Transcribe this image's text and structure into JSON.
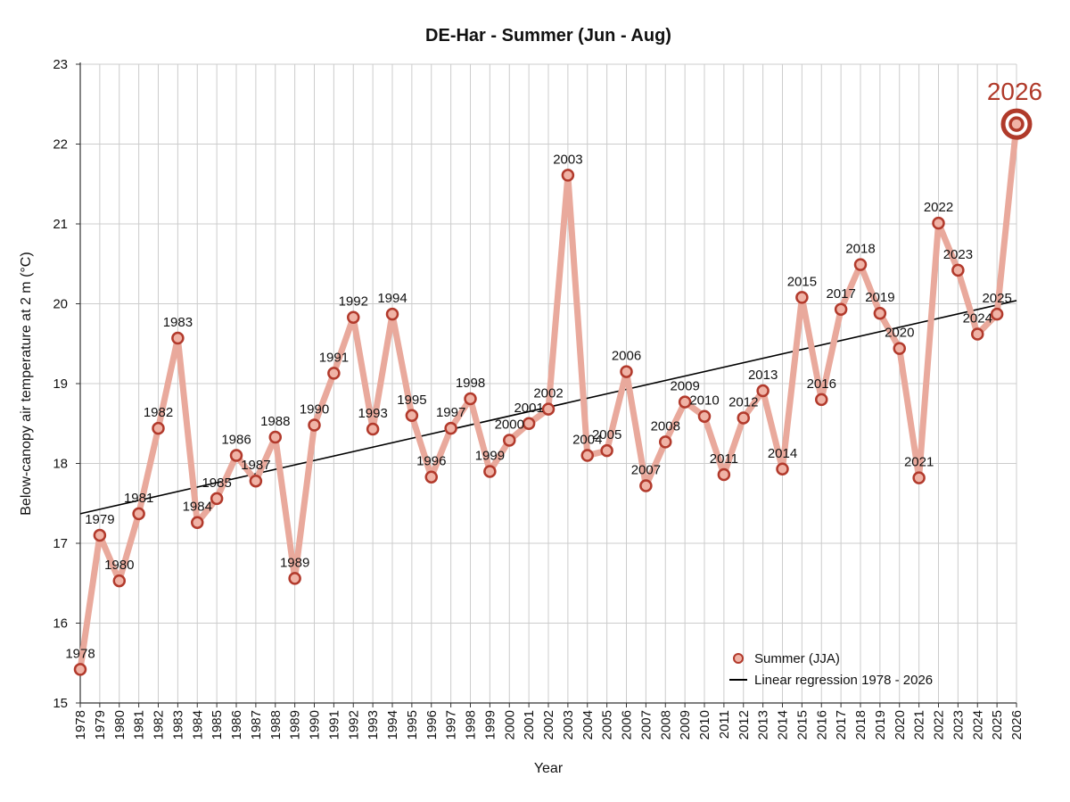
{
  "chart_data": {
    "type": "line",
    "title": "DE-Har - Summer (Jun - Aug)",
    "xlabel": "Year",
    "ylabel": "Below-canopy air temperature at 2 m (°C)",
    "ylim": [
      15,
      23
    ],
    "yticks": [
      15,
      16,
      17,
      18,
      19,
      20,
      21,
      22,
      23
    ],
    "grid": true,
    "legend_position": "bottom-right",
    "colors": {
      "series_line": "#e9a99c",
      "marker_edge": "#b23a2c",
      "marker_fill": "#f0b3a6",
      "regression": "#000000",
      "highlight": "#b03a2a",
      "grid": "#cccccc"
    },
    "x": [
      1978,
      1979,
      1980,
      1981,
      1982,
      1983,
      1984,
      1985,
      1986,
      1987,
      1988,
      1989,
      1990,
      1991,
      1992,
      1993,
      1994,
      1995,
      1996,
      1997,
      1998,
      1999,
      2000,
      2001,
      2002,
      2003,
      2004,
      2005,
      2006,
      2007,
      2008,
      2009,
      2010,
      2011,
      2012,
      2013,
      2014,
      2015,
      2016,
      2017,
      2018,
      2019,
      2020,
      2021,
      2022,
      2023,
      2024,
      2025,
      2026
    ],
    "x_tick_labels": [
      "1978",
      "1979",
      "1980",
      "1981",
      "1982",
      "1983",
      "1984",
      "1985",
      "1986",
      "1987",
      "1988",
      "1989",
      "1990",
      "1991",
      "1992",
      "1993",
      "1994",
      "1995",
      "1996",
      "1997",
      "1998",
      "1999",
      "2000",
      "2001",
      "2002",
      "2003",
      "2004",
      "2005",
      "2006",
      "2007",
      "2008",
      "2009",
      "2010",
      "2011",
      "2012",
      "2013",
      "2014",
      "2015",
      "2016",
      "2017",
      "2018",
      "2019",
      "2020",
      "2021",
      "2022",
      "2023",
      "2024",
      "2025",
      "2026"
    ],
    "series": [
      {
        "name": "Summer (JJA)",
        "values": [
          15.42,
          17.1,
          16.53,
          17.37,
          18.44,
          19.57,
          17.26,
          17.56,
          18.1,
          17.78,
          18.33,
          16.56,
          18.48,
          19.13,
          19.83,
          18.43,
          19.87,
          18.6,
          17.83,
          18.44,
          18.81,
          17.9,
          18.29,
          18.5,
          18.68,
          21.61,
          18.1,
          18.16,
          19.15,
          17.72,
          18.27,
          18.77,
          18.59,
          17.86,
          18.57,
          18.91,
          17.93,
          20.08,
          18.8,
          19.93,
          20.49,
          19.88,
          19.44,
          17.82,
          21.01,
          20.42,
          19.62,
          19.87,
          22.25
        ],
        "point_labels": [
          "1978",
          "1979",
          "1980",
          "1981",
          "1982",
          "1983",
          "1984",
          "1985",
          "1986",
          "1987",
          "1988",
          "1989",
          "1990",
          "1991",
          "1992",
          "1993",
          "1994",
          "1995",
          "1996",
          "1997",
          "1998",
          "1999",
          "2000",
          "2001",
          "2002",
          "2003",
          "2004",
          "2005",
          "2006",
          "2007",
          "2008",
          "2009",
          "2010",
          "2011",
          "2012",
          "2013",
          "2014",
          "2015",
          "2016",
          "2017",
          "2018",
          "2019",
          "2020",
          "2021",
          "2022",
          "2023",
          "2024",
          "2025",
          "2026"
        ]
      },
      {
        "name": "Linear regression 1978 - 2026",
        "type": "line",
        "x": [
          1978,
          2026
        ],
        "values": [
          17.37,
          20.04
        ]
      }
    ],
    "highlight": {
      "x": 2026,
      "label": "2026"
    }
  }
}
